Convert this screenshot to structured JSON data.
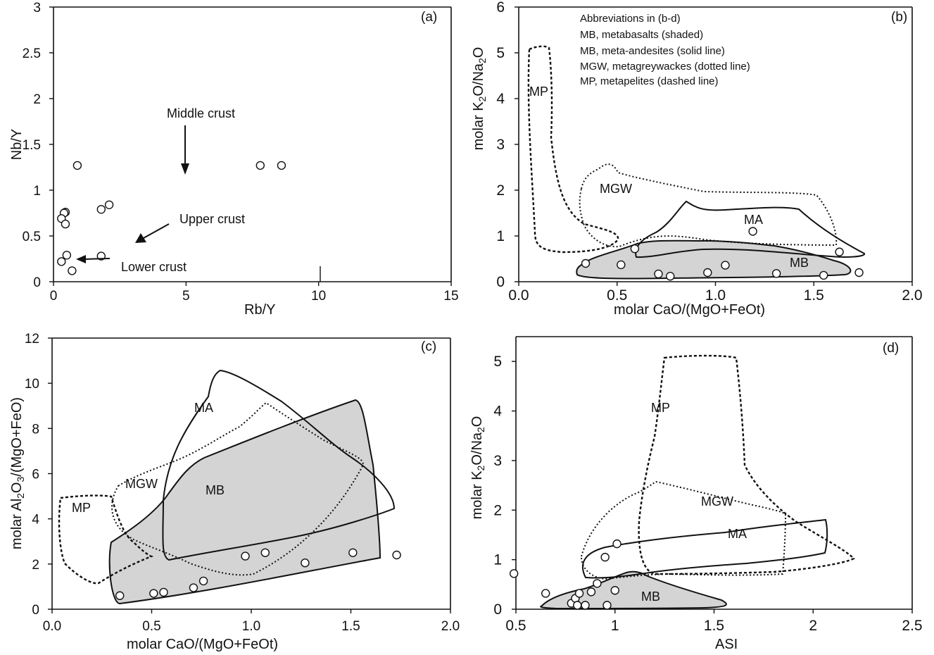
{
  "chart_data": [
    {
      "panel": "(a)",
      "type": "scatter",
      "title": "",
      "xlabel": "Rb/Y",
      "ylabel": "Nb/Y",
      "xlim": [
        0,
        15
      ],
      "ylim": [
        0,
        3
      ],
      "x_ticks": [
        "0",
        "5",
        "10",
        "15"
      ],
      "y_ticks": [
        "0",
        "0.5",
        "1",
        "1.5",
        "2",
        "2.5",
        "3"
      ],
      "points": [
        {
          "x": 0.9,
          "y": 1.27
        },
        {
          "x": 7.8,
          "y": 1.27
        },
        {
          "x": 8.6,
          "y": 1.27
        },
        {
          "x": 2.1,
          "y": 0.84
        },
        {
          "x": 1.8,
          "y": 0.79
        },
        {
          "x": 0.45,
          "y": 0.76
        },
        {
          "x": 0.4,
          "y": 0.75
        },
        {
          "x": 0.3,
          "y": 0.69
        },
        {
          "x": 0.45,
          "y": 0.63
        },
        {
          "x": 0.5,
          "y": 0.29
        },
        {
          "x": 1.8,
          "y": 0.28
        },
        {
          "x": 0.3,
          "y": 0.22
        },
        {
          "x": 0.7,
          "y": 0.12
        }
      ],
      "annotations": [
        {
          "text": "Middle crust",
          "x": 4.9,
          "y": 1.32
        },
        {
          "text": "Upper crust",
          "x": 4.7,
          "y": 0.73
        },
        {
          "text": "Lower crust",
          "x": 2.4,
          "y": 0.21
        }
      ]
    },
    {
      "panel": "(b)",
      "type": "scatter",
      "title": "",
      "xlabel": "molar CaO/(MgO+FeOt)",
      "ylabel_parts": [
        "molar K",
        "2",
        "O/Na",
        "2",
        "O"
      ],
      "xlim": [
        0,
        2.0
      ],
      "ylim": [
        0,
        6
      ],
      "x_ticks": [
        "0.0",
        "0.5",
        "1.0",
        "1.5",
        "2.0"
      ],
      "y_ticks": [
        "0",
        "1",
        "2",
        "3",
        "4",
        "5",
        "6"
      ],
      "legend": {
        "placement": "top",
        "lines": [
          "Abbreviations in (b-d)",
          "MB, metabasalts (shaded)",
          "MB, meta-andesites (solid line)",
          "MGW, metagreywackes (dotted line)",
          "MP, metapelites (dashed line)"
        ]
      },
      "field_labels": [
        "MP",
        "MGW",
        "MA",
        "MB"
      ],
      "points": [
        {
          "x": 0.59,
          "y": 0.72
        },
        {
          "x": 1.19,
          "y": 1.1
        },
        {
          "x": 1.63,
          "y": 0.65
        },
        {
          "x": 0.34,
          "y": 0.4
        },
        {
          "x": 0.52,
          "y": 0.37
        },
        {
          "x": 0.71,
          "y": 0.17
        },
        {
          "x": 0.77,
          "y": 0.12
        },
        {
          "x": 0.96,
          "y": 0.2
        },
        {
          "x": 1.05,
          "y": 0.36
        },
        {
          "x": 1.31,
          "y": 0.18
        },
        {
          "x": 1.55,
          "y": 0.14
        },
        {
          "x": 1.73,
          "y": 0.2
        }
      ]
    },
    {
      "panel": "(c)",
      "type": "scatter",
      "title": "",
      "xlabel": "molar CaO/(MgO+FeOt)",
      "ylabel_parts": [
        "molar Al",
        "2",
        "O",
        "3",
        "/(MgO+FeO)"
      ],
      "xlim": [
        0,
        2.0
      ],
      "ylim": [
        0,
        12
      ],
      "x_ticks": [
        "0.0",
        "0.5",
        "1.0",
        "1.5",
        "2.0"
      ],
      "y_ticks": [
        "0",
        "2",
        "4",
        "6",
        "8",
        "10",
        "12"
      ],
      "field_labels": [
        "MA",
        "MGW",
        "MB",
        "MP"
      ],
      "points": [
        {
          "x": 0.34,
          "y": 0.6
        },
        {
          "x": 0.51,
          "y": 0.7
        },
        {
          "x": 0.56,
          "y": 0.75
        },
        {
          "x": 0.71,
          "y": 0.95
        },
        {
          "x": 0.76,
          "y": 1.25
        },
        {
          "x": 0.97,
          "y": 2.35
        },
        {
          "x": 1.07,
          "y": 2.5
        },
        {
          "x": 1.27,
          "y": 2.05
        },
        {
          "x": 1.51,
          "y": 2.5
        },
        {
          "x": 1.73,
          "y": 2.4
        }
      ]
    },
    {
      "panel": "(d)",
      "type": "scatter",
      "title": "",
      "xlabel": "ASI",
      "ylabel_parts": [
        "molar K",
        "2",
        "O/Na",
        "2",
        "O"
      ],
      "xlim": [
        0.5,
        2.5
      ],
      "ylim": [
        0,
        5.5
      ],
      "x_ticks": [
        "0.5",
        "1",
        "1.5",
        "2",
        "2.5"
      ],
      "y_ticks": [
        "0",
        "1",
        "2",
        "3",
        "4",
        "5"
      ],
      "field_labels": [
        "MP",
        "MGW",
        "MA",
        "MB"
      ],
      "points": [
        {
          "x": 0.49,
          "y": 0.72
        },
        {
          "x": 0.65,
          "y": 0.32
        },
        {
          "x": 0.78,
          "y": 0.12
        },
        {
          "x": 0.8,
          "y": 0.22
        },
        {
          "x": 0.82,
          "y": 0.32
        },
        {
          "x": 0.81,
          "y": 0.08
        },
        {
          "x": 0.85,
          "y": 0.08
        },
        {
          "x": 0.88,
          "y": 0.35
        },
        {
          "x": 0.91,
          "y": 0.52
        },
        {
          "x": 0.95,
          "y": 1.05
        },
        {
          "x": 1.01,
          "y": 1.32
        },
        {
          "x": 0.96,
          "y": 0.08
        },
        {
          "x": 1.0,
          "y": 0.38
        }
      ]
    }
  ]
}
